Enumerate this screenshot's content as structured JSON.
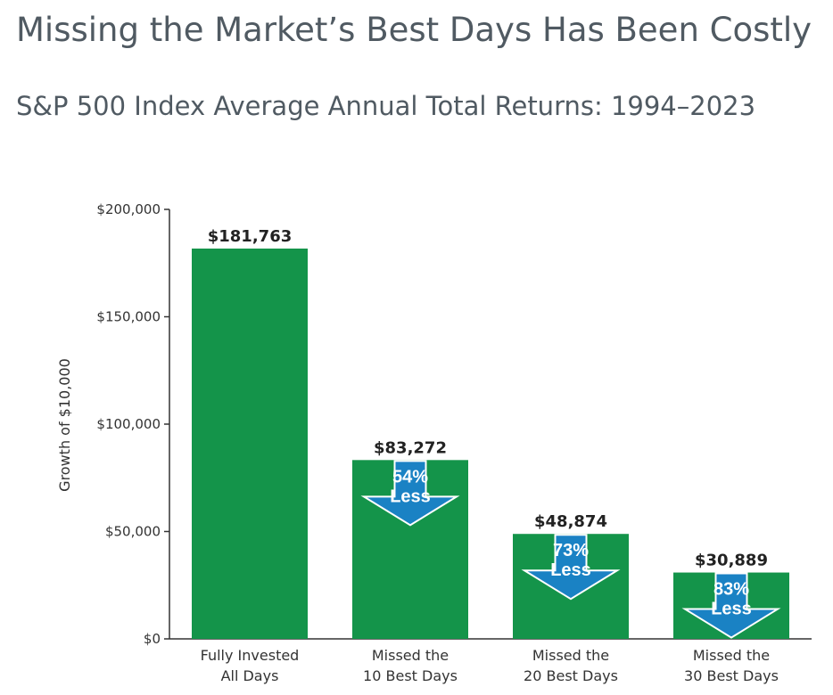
{
  "chart_data": {
    "type": "bar",
    "title": "Missing the Market’s Best Days Has Been Costly",
    "subtitle": "S&P 500 Index Average Annual Total Returns: 1994–2023",
    "ylabel": "Growth of $10,000",
    "xlabel": "",
    "ylim": [
      0,
      200000
    ],
    "yticks": [
      {
        "value": 0,
        "label": "$0"
      },
      {
        "value": 50000,
        "label": "$50,000"
      },
      {
        "value": 100000,
        "label": "$100,000"
      },
      {
        "value": 150000,
        "label": "$150,000"
      },
      {
        "value": 200000,
        "label": "$200,000"
      }
    ],
    "categories": [
      [
        "Fully Invested",
        "All Days"
      ],
      [
        "Missed the",
        "10 Best Days"
      ],
      [
        "Missed the",
        "20 Best Days"
      ],
      [
        "Missed the",
        "30 Best Days"
      ]
    ],
    "values": [
      181763,
      83272,
      48874,
      30889
    ],
    "value_labels": [
      "$181,763",
      "$83,272",
      "$48,874",
      "$30,889"
    ],
    "annotations": [
      null,
      [
        "54%",
        "Less"
      ],
      [
        "73%",
        "Less"
      ],
      [
        "83%",
        "Less"
      ]
    ],
    "grid": false,
    "colors": {
      "bar": "#14944a",
      "arrow": "#1a82c4",
      "arrow_stroke": "#ffffff",
      "axis": "#333333"
    }
  }
}
